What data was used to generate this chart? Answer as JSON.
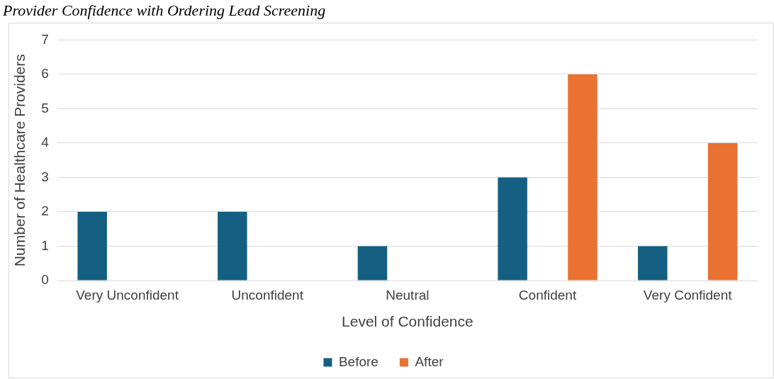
{
  "chart_data": {
    "type": "bar",
    "title": "Provider Confidence with Ordering Lead Screening",
    "xlabel": "Level of Confidence",
    "ylabel": "Number of Healthcare Providers",
    "categories": [
      "Very Unconfident",
      "Unconfident",
      "Neutral",
      "Confident",
      "Very Confident"
    ],
    "series": [
      {
        "name": "Before",
        "color": "#156082",
        "values": [
          2,
          2,
          1,
          3,
          1
        ]
      },
      {
        "name": "After",
        "color": "#e97132",
        "values": [
          0,
          0,
          0,
          6,
          4
        ]
      }
    ],
    "ylim": [
      0,
      7
    ],
    "yticks": [
      0,
      1,
      2,
      3,
      4,
      5,
      6,
      7
    ],
    "grid": "y",
    "legend": "bottom"
  }
}
